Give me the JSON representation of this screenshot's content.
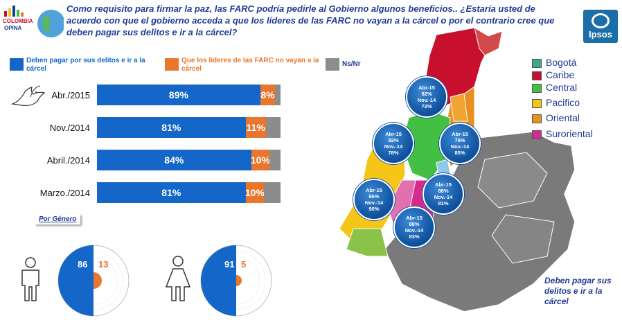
{
  "header": {
    "question": "Como requisito para firmar la paz, las FARC podría pedirle al Gobierno algunos beneficios.. ¿Estaría usted de acuerdo con que el gobierno acceda a que los líderes de las FARC no vayan a la cárcel o por el contrario cree que deben pagar sus delitos e ir a la cárcel?",
    "logo_line1": "COLOMBIA",
    "logo_line2": "OPINA",
    "ipsos_label": "Ipsos"
  },
  "colors": {
    "pay": "#1467c8",
    "no_jail": "#e8762d",
    "nsnr": "#8c8c8c",
    "title": "#1f3b94"
  },
  "chart_data": {
    "type": "bar",
    "orientation": "horizontal-stacked",
    "categories": [
      "Abr./2015",
      "Nov./2014",
      "Abril./2014",
      "Marzo./2014"
    ],
    "series": [
      {
        "name": "Deben pagar por sus delitos e ir a la cárcel",
        "values": [
          89,
          81,
          84,
          81
        ],
        "labels": [
          "89%",
          "81%",
          "84%",
          "81%"
        ]
      },
      {
        "name": "Que los líderes de las FARC no vayan a la cárcel",
        "values": [
          8,
          11,
          10,
          10
        ],
        "labels": [
          "8%",
          "11%",
          "10%",
          "10%"
        ]
      },
      {
        "name": "Ns/Nr",
        "values": [
          3,
          8,
          6,
          9
        ]
      }
    ],
    "xlim": [
      0,
      100
    ],
    "legend": "top"
  },
  "gender": {
    "section_label": "Por Género",
    "male": {
      "pay": 86,
      "no_jail": 13
    },
    "female": {
      "pay": 91,
      "no_jail": 5
    }
  },
  "map": {
    "legend": [
      {
        "label": "Bogotá",
        "color": "#3ea68a"
      },
      {
        "label": "Caribe",
        "color": "#c8102e"
      },
      {
        "label": "Central",
        "color": "#43c043"
      },
      {
        "label": "Pacifico",
        "color": "#f5c518"
      },
      {
        "label": "Oriental",
        "color": "#e8901e"
      },
      {
        "label": "Suroriental",
        "color": "#d62b8c"
      }
    ],
    "bubbles": [
      {
        "l1": "Abr-15",
        "v1": "92%",
        "l2": "Nov.-14",
        "v2": "72%"
      },
      {
        "l1": "Abr-15",
        "v1": "92%",
        "l2": "Nov.-14",
        "v2": "78%"
      },
      {
        "l1": "Abr-15",
        "v1": "79%",
        "l2": "Nov.-14",
        "v2": "85%"
      },
      {
        "l1": "Abr-15",
        "v1": "88%",
        "l2": "Nov.-14",
        "v2": "81%"
      },
      {
        "l1": "Abr-15",
        "v1": "86%",
        "l2": "Nov.-14",
        "v2": "90%"
      },
      {
        "l1": "Abr-15",
        "v1": "88%",
        "l2": "Nov.-14",
        "v2": "83%"
      }
    ],
    "note": "Deben pagar sus delitos e ir a la cárcel"
  }
}
